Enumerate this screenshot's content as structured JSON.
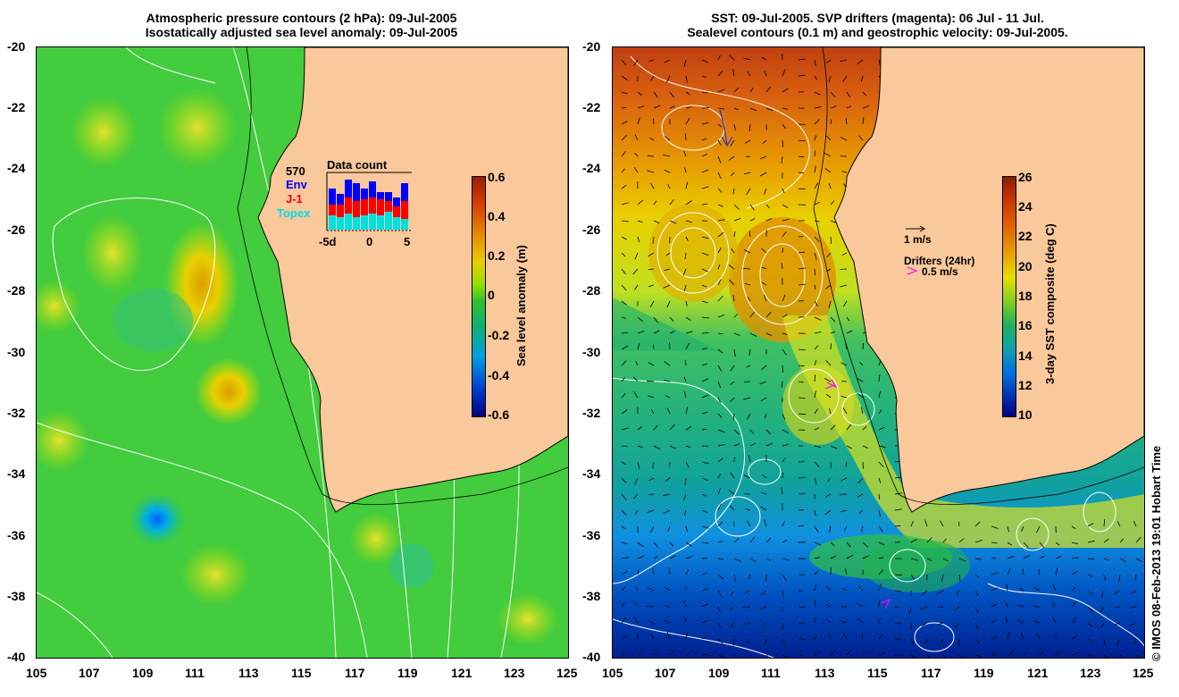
{
  "left": {
    "title1": "Atmospheric pressure contours (2 hPa): 09-Jul-2005",
    "title2": "Isostatically adjusted sea level anomaly: 09-Jul-2005",
    "colorbar_label": "Sea level anomaly (m)",
    "colorbar_ticks": [
      "0.6",
      "0.4",
      "0.2",
      "0",
      "-0.2",
      "-0.4",
      "-0.6"
    ],
    "inset": {
      "count": "570",
      "title": "Data count",
      "env": "Env",
      "j1": "J-1",
      "topex": "Topex",
      "xticks": [
        "-5d",
        "0",
        "5"
      ],
      "colors": {
        "env": "#0000ff",
        "j1": "#ff0000",
        "topex": "#00ffff"
      }
    }
  },
  "right": {
    "title1": "SST: 09-Jul-2005. SVP drifters (magenta): 06 Jul - 11 Jul.",
    "title2": "Sealevel contours (0.1 m) and geostrophic velocity: 09-Jul-2005.",
    "colorbar_label": "3-day SST composite (deg C)",
    "colorbar_ticks": [
      "26",
      "24",
      "22",
      "20",
      "18",
      "16",
      "14",
      "12",
      "10"
    ],
    "velocity_scale": "1 m/s",
    "drifters_label": "Drifters (24hr)",
    "drifter_speed": "0.5 m/s"
  },
  "axes": {
    "xticks": [
      "105",
      "107",
      "109",
      "111",
      "113",
      "115",
      "117",
      "119",
      "121",
      "123",
      "125"
    ],
    "yticks": [
      "-20",
      "-22",
      "-24",
      "-26",
      "-28",
      "-30",
      "-32",
      "-34",
      "-36",
      "-38",
      "-40"
    ]
  },
  "credit": "© IMOS 08-Feb-2013 19:01 Hobart Time",
  "colors": {
    "land": "#f9c89b",
    "drifter": "#ff00ff",
    "ocean_green": "#33cc33"
  }
}
